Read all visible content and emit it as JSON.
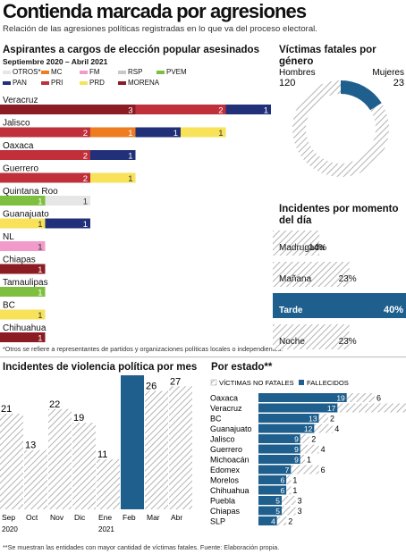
{
  "header": {
    "title": "Contienda marcada por agresiones",
    "subtitle": "Relación de las agresiones políticas registradas en lo que va del proceso electoral."
  },
  "colors": {
    "OTROS": "#e6e6e6",
    "MC": "#ee7d22",
    "FM": "#f29bcb",
    "RSP": "#c9c9c9",
    "PVEM": "#7fbf3f",
    "PAN": "#22307a",
    "PRI": "#c0303a",
    "PRD": "#f7e25a",
    "MORENA": "#8b1c23",
    "accent": "#1e5f8e",
    "hatch": "#b3b3b3"
  },
  "chart_data": [
    {
      "id": "aspirantes",
      "type": "bar",
      "title": "Aspirantes a cargos de elección popular asesinados",
      "subtitle": "Septiembre 2020 – Abril 2021",
      "legend": [
        "OTROS*",
        "MC",
        "FM",
        "RSP",
        "PVEM",
        "PAN",
        "PRI",
        "PRD",
        "MORENA"
      ],
      "categories": [
        "Veracruz",
        "Jalisco",
        "Oaxaca",
        "Guerrero",
        "Quintana Roo",
        "Guanajuato",
        "NL",
        "Chiapas",
        "Tamaulipas",
        "BC",
        "Chihuahua"
      ],
      "rows": [
        {
          "state": "Veracruz",
          "segments": [
            {
              "party": "MORENA",
              "value": 3
            },
            {
              "party": "PRI",
              "value": 2
            },
            {
              "party": "PAN",
              "value": 1
            }
          ]
        },
        {
          "state": "Jalisco",
          "segments": [
            {
              "party": "PRI",
              "value": 2
            },
            {
              "party": "MC",
              "value": 1
            },
            {
              "party": "PAN",
              "value": 1
            },
            {
              "party": "PRD",
              "value": 1
            }
          ]
        },
        {
          "state": "Oaxaca",
          "segments": [
            {
              "party": "PRI",
              "value": 2
            },
            {
              "party": "PAN",
              "value": 1
            }
          ]
        },
        {
          "state": "Guerrero",
          "segments": [
            {
              "party": "PRI",
              "value": 2
            },
            {
              "party": "PRD",
              "value": 1
            }
          ]
        },
        {
          "state": "Quintana Roo",
          "segments": [
            {
              "party": "PVEM",
              "value": 1
            },
            {
              "party": "OTROS",
              "value": 1
            }
          ]
        },
        {
          "state": "Guanajuato",
          "segments": [
            {
              "party": "PRD",
              "value": 1
            },
            {
              "party": "PAN",
              "value": 1
            }
          ]
        },
        {
          "state": "NL",
          "segments": [
            {
              "party": "FM",
              "value": 1
            }
          ]
        },
        {
          "state": "Chiapas",
          "segments": [
            {
              "party": "MORENA",
              "value": 1
            }
          ]
        },
        {
          "state": "Tamaulipas",
          "segments": [
            {
              "party": "PVEM",
              "value": 1
            }
          ]
        },
        {
          "state": "BC",
          "segments": [
            {
              "party": "PRD",
              "value": 1
            }
          ]
        },
        {
          "state": "Chihuahua",
          "segments": [
            {
              "party": "MORENA",
              "value": 1
            }
          ]
        }
      ],
      "footnote": "*Otros se refiere a representantes de partidos y organizaciones políticas locales o independientes."
    },
    {
      "id": "victimas_genero",
      "type": "pie",
      "title": "Víctimas fatales por género",
      "labels": [
        "Hombres",
        "Mujeres"
      ],
      "values": [
        120,
        23
      ]
    },
    {
      "id": "momento_dia",
      "type": "bar",
      "title": "Incidentes por momento del día",
      "categories": [
        "Madrugada",
        "Mañana",
        "Tarde",
        "Noche"
      ],
      "values": [
        14,
        23,
        40,
        23
      ],
      "value_labels": [
        "14%",
        "23%",
        "40%",
        "23%"
      ],
      "highlight": "Tarde"
    },
    {
      "id": "violencia_mes",
      "type": "bar",
      "title": "Incidentes de violencia política por mes",
      "categories": [
        "Sep",
        "Oct",
        "Nov",
        "Dic",
        "Ene",
        "Feb",
        "Mar",
        "Abr"
      ],
      "values": [
        21,
        13,
        22,
        19,
        11,
        30,
        26,
        27
      ],
      "year_labels": [
        "2020",
        "2021"
      ],
      "highlight": "Feb"
    },
    {
      "id": "por_estado",
      "type": "bar",
      "title": "Por estado**",
      "legend": [
        "VÍCTIMAS NO FATALES",
        "FALLECIDOS"
      ],
      "categories": [
        "Oaxaca",
        "Veracruz",
        "BC",
        "Guanajuato",
        "Jalisco",
        "Guerrero",
        "Michoacán",
        "Edomex",
        "Morelos",
        "Chihuahua",
        "Puebla",
        "Chiapas",
        "SLP"
      ],
      "series": [
        {
          "name": "FALLECIDOS",
          "values": [
            19,
            17,
            13,
            12,
            9,
            9,
            9,
            7,
            6,
            6,
            5,
            5,
            4
          ]
        },
        {
          "name": "VÍCTIMAS NO FATALES",
          "values": [
            6,
            16,
            2,
            4,
            2,
            4,
            1,
            6,
            1,
            1,
            3,
            3,
            2
          ]
        }
      ]
    }
  ],
  "footnote_bottom": "**Se muestran las entidades con mayor cantidad de víctimas fatales. Fuente: Elaboración propia."
}
